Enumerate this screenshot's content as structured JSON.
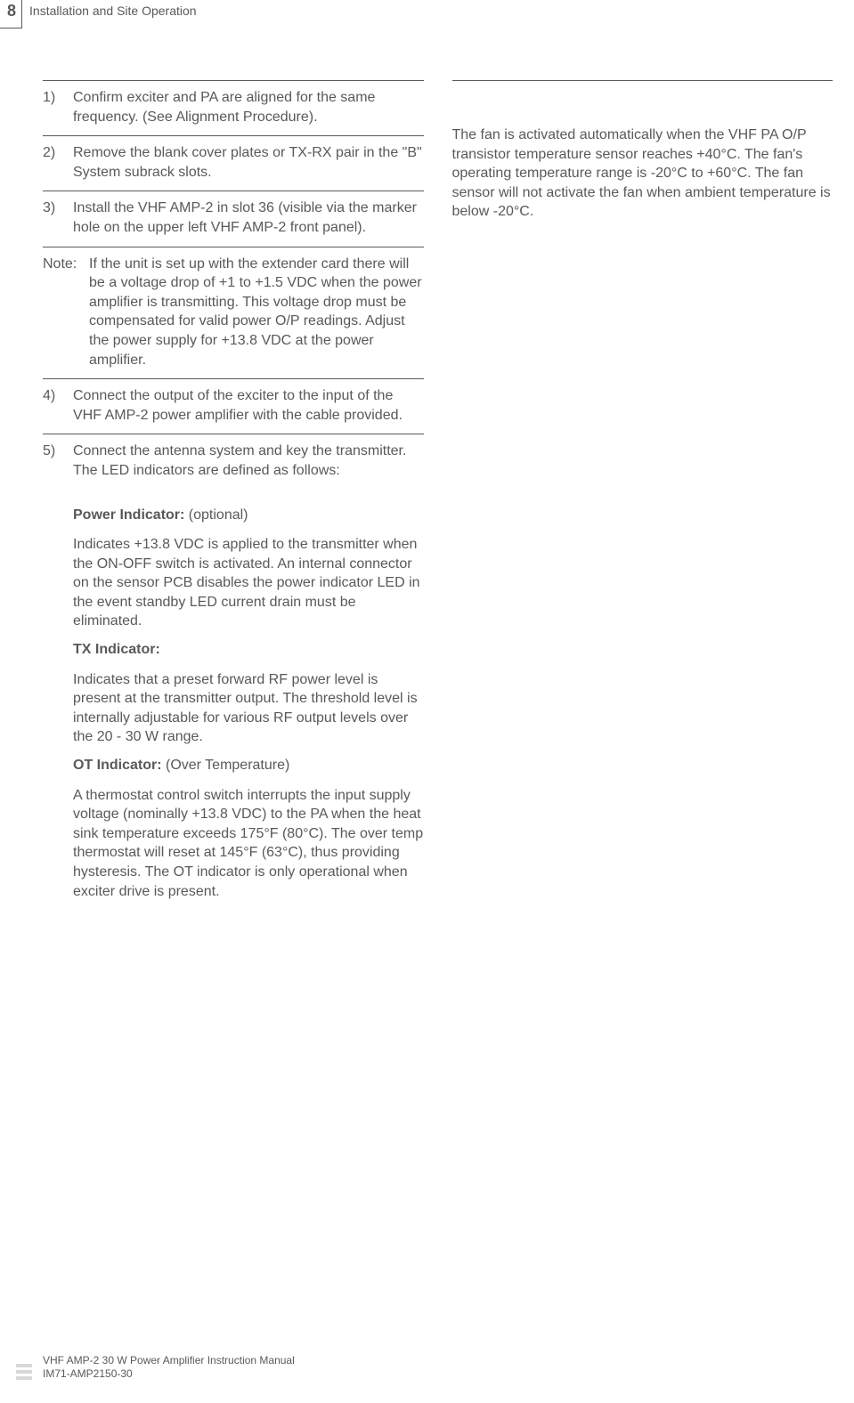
{
  "header": {
    "page_number": "8",
    "section_title": "Installation and Site Operation"
  },
  "steps": [
    {
      "num": "1)",
      "text": "Confirm exciter and PA are aligned for the same frequency. (See Alignment Procedure)."
    },
    {
      "num": "2)",
      "text": "Remove the blank cover plates or TX-RX pair in the \"B\" System subrack slots."
    },
    {
      "num": "3)",
      "text": "Install the VHF AMP-2 in slot 36 (visible via the marker hole on the upper left VHF AMP-2 front panel)."
    }
  ],
  "note": {
    "label": "Note:",
    "text": "If the unit is set up with the extender card there will be a voltage drop of +1 to +1.5 VDC when the power amplifier is transmitting. This voltage drop must be compensated for valid power O/P readings. Adjust the power supply for +13.8 VDC at the power amplifier."
  },
  "steps2": [
    {
      "num": "4)",
      "text": "Connect the output of the exciter to the input of the VHF AMP-2 power amplifier with the cable provided."
    },
    {
      "num": "5)",
      "text": "Connect the antenna system and key the transmitter. The LED indicators are defined as follows:"
    }
  ],
  "leds": [
    {
      "title_bold": "Power Indicator:",
      "title_rest": " (optional)",
      "desc": "Indicates +13.8 VDC is applied to the transmitter when the ON-OFF switch is activated. An internal connector on the sensor PCB disables the power indicator LED in the event standby LED current drain must be eliminated."
    },
    {
      "title_bold": "TX Indicator:",
      "title_rest": "",
      "desc": "Indicates that a preset forward RF power level is present at the transmitter output. The threshold level is internally adjustable for various RF output levels over the 20 - 30 W range."
    },
    {
      "title_bold": "OT Indicator:",
      "title_rest": " (Over Temperature)",
      "desc": "A thermostat control switch interrupts the input supply voltage (nominally +13.8 VDC) to the PA when the heat sink temperature exceeds 175°F (80°C). The over temp thermostat will reset at 145°F (63°C), thus providing hysteresis. The OT indicator is only operational when exciter drive is present."
    }
  ],
  "right_column": {
    "text": "The fan is activated automatically when the VHF PA O/P transistor temperature sensor reaches +40°C. The fan's operating temperature range is -20°C to +60°C. The fan sensor will not activate the fan when ambient temperature is below -20°C."
  },
  "footer": {
    "line1": "VHF AMP-2 30 W Power Amplifier Instruction Manual",
    "line2": "IM71-AMP2150-30"
  }
}
